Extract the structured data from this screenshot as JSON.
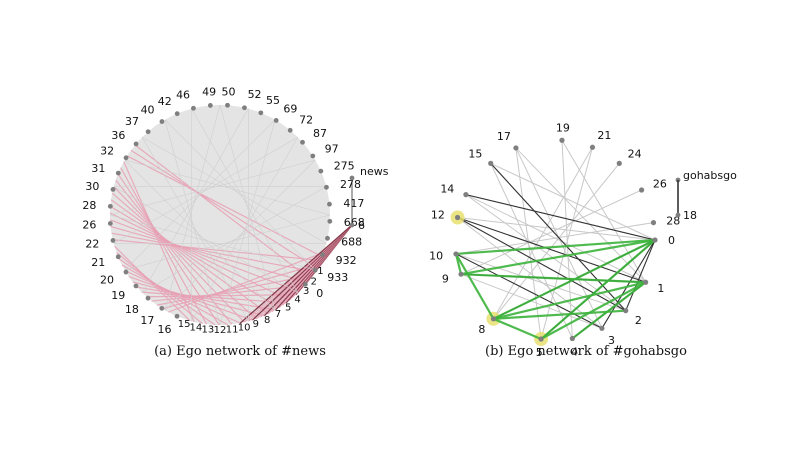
{
  "panels": [
    {
      "caption": "(a) Ego network of #news",
      "ego_label": "news",
      "nodes": [
        "0",
        "1",
        "2",
        "3",
        "4",
        "5",
        "6",
        "7",
        "8",
        "9",
        "10",
        "11",
        "12",
        "13",
        "14",
        "15",
        "16",
        "17",
        "18",
        "19",
        "20",
        "21",
        "22",
        "26",
        "28",
        "30",
        "31",
        "32",
        "36",
        "37",
        "40",
        "42",
        "46",
        "49",
        "50",
        "52",
        "55",
        "69",
        "72",
        "87",
        "97",
        "275",
        "278",
        "417",
        "668",
        "688",
        "932",
        "933"
      ],
      "visible_node_labels": [
        "0",
        "6",
        "16",
        "17",
        "18",
        "19",
        "20",
        "21",
        "22",
        "26",
        "28",
        "30",
        "31",
        "32",
        "36",
        "37",
        "40",
        "42",
        "46",
        "49",
        "50",
        "52",
        "55",
        "69",
        "72",
        "87",
        "97",
        "275",
        "278",
        "417",
        "668",
        "688",
        "932",
        "933"
      ],
      "edge_color": "#e8a0b4",
      "node_color": "#d9d9d9"
    },
    {
      "caption": "(b) Ego network of #gohabsgo",
      "ego_label": "gohabsgo",
      "extra_label": "18",
      "nodes": [
        "0",
        "1",
        "2",
        "3",
        "4",
        "5",
        "8",
        "9",
        "10",
        "12",
        "14",
        "15",
        "17",
        "19",
        "21",
        "24",
        "26",
        "28"
      ],
      "edge_color": "#3cb43c",
      "highlight_color": "#e8e070",
      "node_color": "#d9d9d9"
    }
  ]
}
